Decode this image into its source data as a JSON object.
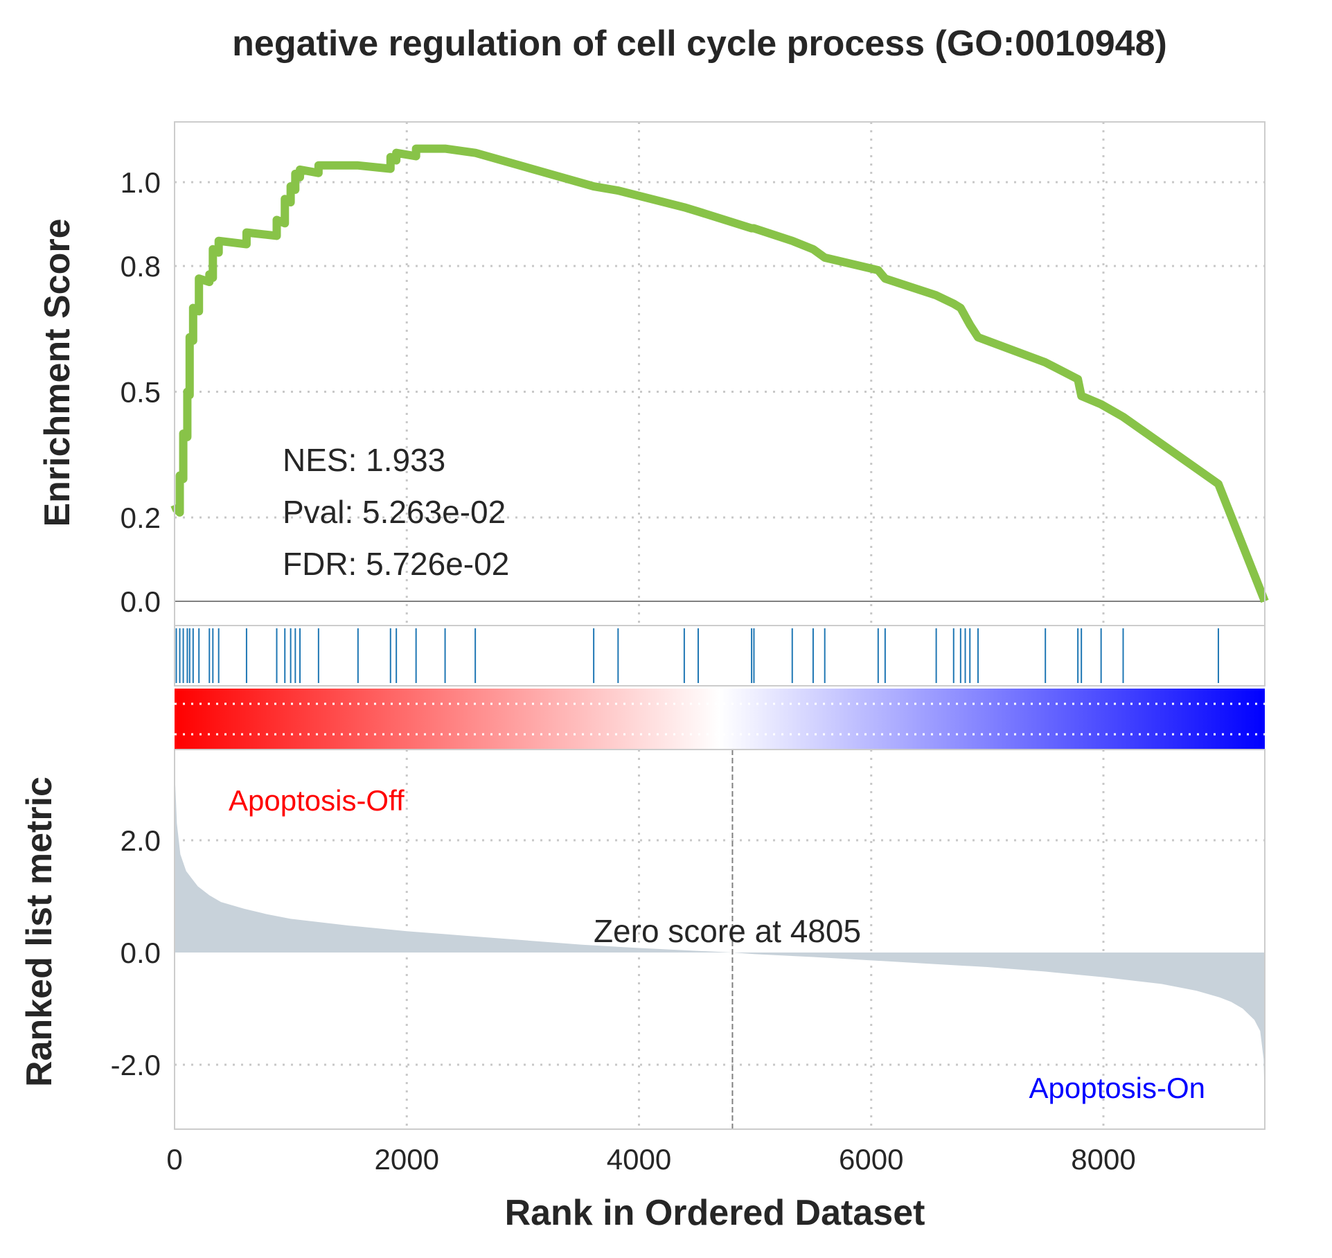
{
  "chart_data": {
    "type": "line",
    "title": "negative regulation of cell cycle process (GO:0010948)",
    "xlabel": "Rank in Ordered Dataset",
    "colors": {
      "es_line": "#88c348",
      "hit_line": "#1f77b4",
      "metric_fill": "#c8d2da",
      "grid": "#c8c8c8",
      "frame": "#cccccc",
      "phenotype_pos": "#ff0000",
      "phenotype_neg": "#0000ff",
      "gradient_start": "#ff0000",
      "gradient_mid": "#ffffff",
      "gradient_end": "#0000ff"
    },
    "enrichment_panel": {
      "ylabel": "Enrichment Score",
      "ylim": [
        0,
        1.1
      ],
      "yticks": [
        0.0,
        0.2,
        0.5,
        0.8,
        1.0
      ],
      "ytick_labels": [
        "0.0",
        "0.2",
        "0.5",
        "0.8",
        "1.0"
      ],
      "grid": true,
      "annotations": [
        "NES: 1.933",
        "Pval: 5.263e-02",
        "FDR: 5.726e-02"
      ]
    },
    "hits": [
      15,
      45,
      75,
      110,
      130,
      160,
      210,
      300,
      330,
      380,
      620,
      880,
      950,
      1000,
      1040,
      1080,
      1240,
      1580,
      1860,
      1910,
      2080,
      2330,
      2590,
      3610,
      3820,
      4390,
      4510,
      4970,
      4990,
      5320,
      5500,
      5600,
      6060,
      6120,
      6560,
      6710,
      6770,
      6810,
      6850,
      6920,
      7500,
      7780,
      7810,
      7980,
      8170,
      8990
    ],
    "es": {
      "x": [
        0,
        15,
        45,
        75,
        110,
        130,
        160,
        210,
        300,
        330,
        380,
        620,
        880,
        950,
        1000,
        1040,
        1080,
        1240,
        1580,
        1860,
        1910,
        2080,
        2330,
        2590,
        3610,
        3820,
        4390,
        4510,
        4970,
        4990,
        5320,
        5500,
        5600,
        6060,
        6120,
        6560,
        6710,
        6770,
        6810,
        6850,
        6920,
        7500,
        7780,
        7810,
        7980,
        8170,
        8990,
        9390
      ],
      "y": [
        0.23,
        0.22,
        0.3,
        0.4,
        0.5,
        0.63,
        0.7,
        0.77,
        0.78,
        0.84,
        0.86,
        0.88,
        0.91,
        0.96,
        0.99,
        1.02,
        1.03,
        1.04,
        1.04,
        1.06,
        1.07,
        1.08,
        1.08,
        1.07,
        0.99,
        0.98,
        0.94,
        0.93,
        0.89,
        0.89,
        0.86,
        0.84,
        0.82,
        0.79,
        0.77,
        0.73,
        0.71,
        0.7,
        0.68,
        0.66,
        0.63,
        0.57,
        0.53,
        0.49,
        0.47,
        0.44,
        0.28,
        0.0
      ]
    },
    "ranking_panel": {
      "ylabel": "Ranked list metric",
      "ylim": [
        -3.1,
        3.3
      ],
      "yticks": [
        -2.0,
        0.0,
        2.0
      ],
      "ytick_labels": [
        "-2.0",
        "0.0",
        "2.0"
      ],
      "grid": true,
      "zero_score_label": "Zero score at 4805",
      "zero_rank": 4805,
      "phenotype_pos": "Apoptosis-Off",
      "phenotype_neg": "Apoptosis-On",
      "metric": {
        "x": [
          0,
          20,
          50,
          100,
          200,
          300,
          400,
          600,
          800,
          1000,
          1500,
          2000,
          2500,
          3000,
          3500,
          4000,
          4500,
          4805,
          5000,
          5500,
          6000,
          6500,
          7000,
          7500,
          8000,
          8500,
          8800,
          9000,
          9100,
          9200,
          9300,
          9350,
          9380,
          9390
        ],
        "y": [
          3.3,
          2.3,
          1.75,
          1.45,
          1.18,
          1.02,
          0.9,
          0.78,
          0.68,
          0.6,
          0.48,
          0.38,
          0.3,
          0.22,
          0.14,
          0.08,
          0.03,
          0.0,
          -0.03,
          -0.08,
          -0.14,
          -0.2,
          -0.26,
          -0.34,
          -0.44,
          -0.56,
          -0.68,
          -0.8,
          -0.88,
          -1.0,
          -1.2,
          -1.4,
          -1.9,
          -2.8
        ]
      }
    },
    "xlim": [
      0,
      9390
    ],
    "xticks": [
      0,
      2000,
      4000,
      6000,
      8000
    ],
    "xtick_labels": [
      "0",
      "2000",
      "4000",
      "6000",
      "8000"
    ]
  }
}
